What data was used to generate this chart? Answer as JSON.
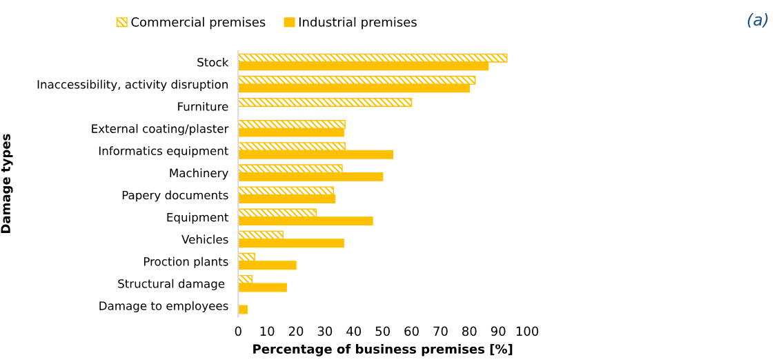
{
  "chart_data": {
    "type": "bar",
    "orientation": "horizontal",
    "xlabel": "Percentage of business premises [%]",
    "ylabel": "Damage types",
    "categories": [
      "Stock",
      "Inaccessibility, activity disruption",
      "Furniture",
      "External coating/plaster",
      "Informatics equipment",
      "Machinery",
      "Papery documents",
      "Equipment",
      "Vehicles",
      "Proction plants",
      "Structural damage ",
      "Damage to employees"
    ],
    "series": [
      {
        "name": "Commercial premises",
        "color": "#ffc000",
        "values": [
          93,
          82,
          60,
          37,
          37,
          36,
          33,
          27,
          15.5,
          5.7,
          4.8,
          0
        ]
      },
      {
        "name": "Industrial premises",
        "color": "#ffc000",
        "values": [
          86.5,
          80,
          0,
          36.5,
          53.5,
          50,
          33.5,
          46.5,
          36.5,
          20,
          16.7,
          3.1
        ]
      }
    ],
    "xlim": [
      0,
      100
    ],
    "xticks": [
      0,
      10,
      20,
      30,
      40,
      50,
      60,
      70,
      80,
      90,
      100
    ],
    "grid": false,
    "legend": "top",
    "annotations": [
      "(a)"
    ]
  }
}
